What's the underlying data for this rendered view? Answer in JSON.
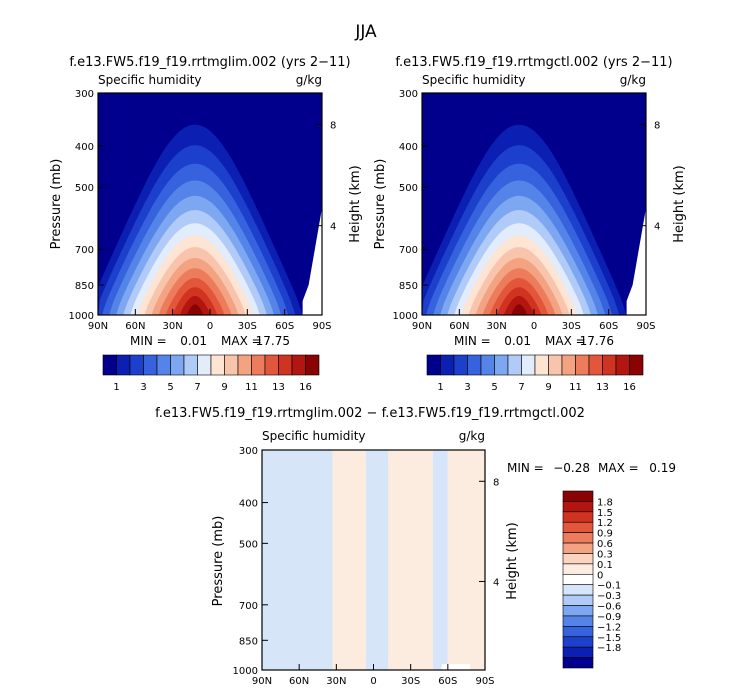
{
  "figure": {
    "title": "JJA",
    "diff_title": "f.e13.FW5.f19_f19.rrtmglim.002 − f.e13.FW5.f19_f19.rrtmgctl.002"
  },
  "chart_data": [
    {
      "type": "heatmap",
      "panel": "top-left",
      "title": "f.e13.FW5.f19_f19.rrtmglim.002 (yrs 2−11)",
      "subtitle": "Specific humidity",
      "units": "g/kg",
      "ylabel": "Pressure (mb)",
      "ylabel_right": "Height (km)",
      "x_ticks": [
        "90N",
        "60N",
        "30N",
        "0",
        "30S",
        "60S",
        "90S"
      ],
      "x_values": [
        90,
        60,
        30,
        0,
        -30,
        -60,
        -90
      ],
      "y_ticks": [
        300,
        400,
        500,
        700,
        850,
        1000
      ],
      "y_ticks_right": [
        8,
        4
      ],
      "xlim": [
        90,
        -90
      ],
      "ylim": [
        1000,
        300
      ],
      "min_label": "MIN =",
      "min": "0.01",
      "max_label": "MAX =",
      "max": "17.75",
      "colorbar_labels": [
        "1",
        "3",
        "5",
        "7",
        "9",
        "11",
        "13",
        "16"
      ],
      "peak_lat": 12,
      "surface_max": 17.75,
      "surface_cutoff_lat": -68
    },
    {
      "type": "heatmap",
      "panel": "top-right",
      "title": "f.e13.FW5.f19_f19.rrtmgctl.002 (yrs 2−11)",
      "subtitle": "Specific humidity",
      "units": "g/kg",
      "ylabel": "Pressure (mb)",
      "ylabel_right": "Height (km)",
      "x_ticks": [
        "90N",
        "60N",
        "30N",
        "0",
        "30S",
        "60S",
        "90S"
      ],
      "x_values": [
        90,
        60,
        30,
        0,
        -30,
        -60,
        -90
      ],
      "y_ticks": [
        300,
        400,
        500,
        700,
        850,
        1000
      ],
      "y_ticks_right": [
        8,
        4
      ],
      "xlim": [
        90,
        -90
      ],
      "ylim": [
        1000,
        300
      ],
      "min_label": "MIN =",
      "min": "0.01",
      "max_label": "MAX =",
      "max": "17.76",
      "colorbar_labels": [
        "1",
        "3",
        "5",
        "7",
        "9",
        "11",
        "13",
        "16"
      ],
      "peak_lat": 12,
      "surface_max": 17.76,
      "surface_cutoff_lat": -68
    },
    {
      "type": "heatmap",
      "panel": "bottom-difference",
      "subtitle": "Specific humidity",
      "units": "g/kg",
      "ylabel": "Pressure (mb)",
      "ylabel_right": "Height (km)",
      "x_ticks": [
        "90N",
        "60N",
        "30N",
        "0",
        "30S",
        "60S",
        "90S"
      ],
      "x_values": [
        90,
        60,
        30,
        0,
        -30,
        -60,
        -90
      ],
      "y_ticks": [
        300,
        400,
        500,
        700,
        850,
        1000
      ],
      "y_ticks_right": [
        8,
        4
      ],
      "xlim": [
        90,
        -90
      ],
      "ylim": [
        1000,
        300
      ],
      "min_label": "MIN =",
      "min": "−0.28",
      "max_label": "MAX =",
      "max": "0.19",
      "colorbar_labels": [
        "1.8",
        "1.5",
        "1.2",
        "0.9",
        "0.6",
        "0.3",
        "0.1",
        "0",
        "−0.1",
        "−0.3",
        "−0.6",
        "−0.9",
        "−1.2",
        "−1.5",
        "−1.8"
      ],
      "bands": [
        {
          "lat_from": 90,
          "lat_to": 33,
          "sign": "negative"
        },
        {
          "lat_from": 33,
          "lat_to": 6,
          "sign": "positive"
        },
        {
          "lat_from": 6,
          "lat_to": -12,
          "sign": "negative"
        },
        {
          "lat_from": -12,
          "lat_to": -48,
          "sign": "positive"
        },
        {
          "lat_from": -48,
          "lat_to": -60,
          "sign": "negative"
        },
        {
          "lat_from": -60,
          "lat_to": -90,
          "sign": "positive"
        }
      ]
    }
  ],
  "colors": {
    "abs_scale": [
      "#00008d",
      "#0b1fb2",
      "#1d40cc",
      "#3662dd",
      "#5584e8",
      "#7ea7f2",
      "#b0cbf8",
      "#e3ecfb",
      "#fde4d3",
      "#f8c5ac",
      "#f3a282",
      "#ec7c5c",
      "#e2573b",
      "#d13321",
      "#b31610",
      "#8a0303"
    ],
    "diff_scale": [
      "#8a0303",
      "#b31610",
      "#d13321",
      "#e2573b",
      "#ec7c5c",
      "#f3a282",
      "#fbd3be",
      "#fcece2",
      "#ffffff",
      "#d5e6f8",
      "#b0cbf8",
      "#7ea7f2",
      "#5584e8",
      "#3662dd",
      "#1d40cc",
      "#0b1fb2",
      "#00008d"
    ],
    "diff_negative": "#d6e6f8",
    "diff_positive": "#fcebdf"
  }
}
